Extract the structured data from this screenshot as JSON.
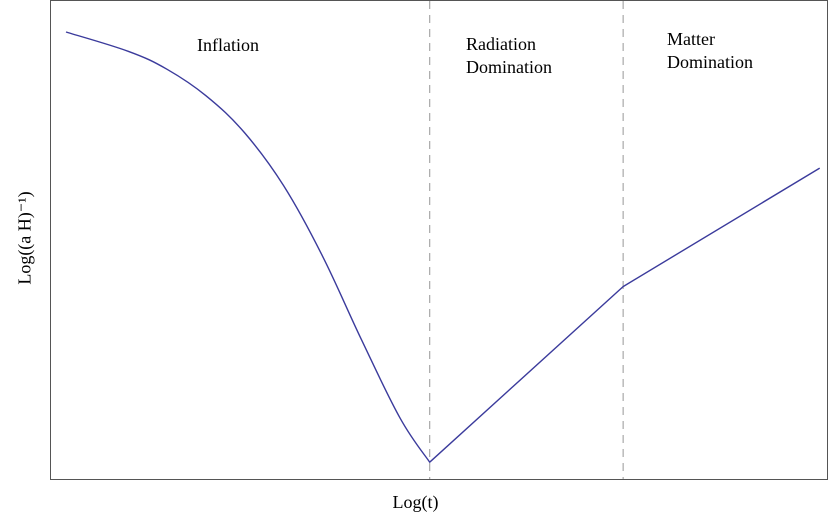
{
  "chart_data": {
    "type": "line",
    "title": "",
    "xlabel": "Log(t)",
    "ylabel": "Log((a H)⁻¹)",
    "xlim": [
      0,
      10
    ],
    "ylim": [
      0,
      10
    ],
    "grid": false,
    "legend": "none",
    "ticks_shown": false,
    "line_color": "#3b3b9c",
    "divider_color": "#a8a8a8",
    "dividers_x": [
      4.88,
      7.37
    ],
    "regions": [
      {
        "lines": [
          "Inflation"
        ]
      },
      {
        "lines": [
          "Radiation",
          "Domination"
        ]
      },
      {
        "lines": [
          "Matter",
          "Domination"
        ]
      }
    ],
    "series": [
      {
        "x": [
          0.2,
          1.0,
          1.5,
          2.0,
          2.5,
          3.0,
          3.5,
          4.0,
          4.5,
          4.88,
          7.37,
          9.9
        ],
        "y": [
          10.0,
          9.56,
          9.15,
          8.55,
          7.7,
          6.5,
          4.9,
          3.0,
          1.2,
          0.2,
          4.2,
          6.9
        ]
      }
    ]
  }
}
